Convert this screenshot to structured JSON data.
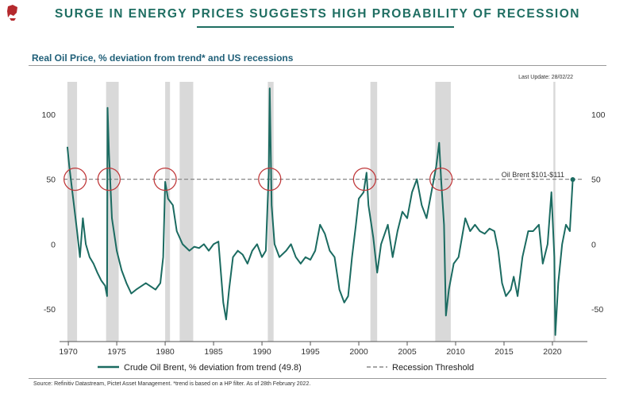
{
  "header": {
    "title": "SURGE IN ENERGY PRICES SUGGESTS HIGH PROBABILITY OF RECESSION"
  },
  "colors": {
    "accent": "#1f6e62",
    "series": "#1b6b61",
    "recession_band": "#d9d9d9",
    "circle": "#c0393b"
  },
  "footer": {
    "source": "Source: Refinitiv Datastream, Pictet Asset Management. *trend is based on a HP filter. As of 28th February 2022."
  },
  "chart_data": {
    "type": "line",
    "title": "Real Oil Price, % deviation from trend* and US recessions",
    "update_note": "Last Update: 28/02/22",
    "xlabel": "",
    "ylabel": "",
    "xlim": [
      1969.5,
      2023.2
    ],
    "ylim": [
      -75,
      125
    ],
    "x_ticks": [
      1970,
      1975,
      1980,
      1985,
      1990,
      1995,
      2000,
      2005,
      2010,
      2015,
      2020
    ],
    "y_ticks": [
      -50,
      0,
      50,
      100
    ],
    "grid": false,
    "legend_position": "bottom",
    "recessions": [
      [
        1969.9,
        1970.9
      ],
      [
        1973.9,
        1975.2
      ],
      [
        1980.0,
        1980.5
      ],
      [
        1981.5,
        1982.9
      ],
      [
        1990.6,
        1991.2
      ],
      [
        2001.2,
        2001.9
      ],
      [
        2007.9,
        2009.5
      ],
      [
        2020.1,
        2020.3
      ]
    ],
    "highlighted_points": [
      {
        "x": 1970.7,
        "y": 50
      },
      {
        "x": 1974.2,
        "y": 50
      },
      {
        "x": 1980.0,
        "y": 50
      },
      {
        "x": 1990.8,
        "y": 50
      },
      {
        "x": 2000.6,
        "y": 50
      },
      {
        "x": 2008.5,
        "y": 50
      }
    ],
    "annotation": {
      "text": "Oil Brent $101-$111",
      "x": 2022.2,
      "y": 50
    },
    "series": [
      {
        "name": "Crude Oil Brent, % deviation from trend (49.8)",
        "x": [
          1969.9,
          1970.1,
          1970.5,
          1970.9,
          1971.2,
          1971.5,
          1971.8,
          1972.2,
          1972.6,
          1973.0,
          1973.4,
          1973.8,
          1974.0,
          1974.05,
          1974.2,
          1974.5,
          1975.0,
          1975.5,
          1976.0,
          1976.5,
          1977.0,
          1978.0,
          1979.0,
          1979.5,
          1979.8,
          1980.0,
          1980.3,
          1980.8,
          1981.2,
          1981.8,
          1982.5,
          1983.0,
          1983.5,
          1984.0,
          1984.5,
          1985.0,
          1985.5,
          1986.0,
          1986.3,
          1986.6,
          1987.0,
          1987.5,
          1988.0,
          1988.5,
          1989.0,
          1989.5,
          1990.0,
          1990.4,
          1990.7,
          1990.8,
          1991.0,
          1991.3,
          1991.8,
          1992.5,
          1993.0,
          1993.5,
          1994.0,
          1994.5,
          1995.0,
          1995.5,
          1996.0,
          1996.5,
          1997.0,
          1997.5,
          1998.0,
          1998.5,
          1998.9,
          1999.3,
          1999.7,
          2000.0,
          2000.5,
          2000.8,
          2001.0,
          2001.5,
          2001.9,
          2002.3,
          2003.0,
          2003.5,
          2004.0,
          2004.5,
          2005.0,
          2005.5,
          2006.0,
          2006.5,
          2007.0,
          2007.5,
          2008.0,
          2008.3,
          2008.5,
          2008.8,
          2009.0,
          2009.3,
          2009.8,
          2010.3,
          2011.0,
          2011.5,
          2012.0,
          2012.5,
          2013.0,
          2013.5,
          2014.0,
          2014.4,
          2014.8,
          2015.2,
          2015.7,
          2016.0,
          2016.4,
          2016.9,
          2017.5,
          2018.0,
          2018.6,
          2019.0,
          2019.5,
          2019.9,
          2020.2,
          2020.3,
          2020.6,
          2021.0,
          2021.4,
          2021.8,
          2022.1
        ],
        "values": [
          75,
          60,
          35,
          10,
          -10,
          20,
          0,
          -10,
          -15,
          -22,
          -28,
          -32,
          -40,
          105,
          70,
          20,
          -5,
          -20,
          -30,
          -38,
          -35,
          -30,
          -35,
          -30,
          -10,
          48,
          35,
          30,
          10,
          0,
          -5,
          -2,
          -3,
          0,
          -5,
          0,
          2,
          -45,
          -58,
          -35,
          -10,
          -5,
          -8,
          -15,
          -5,
          0,
          -10,
          -5,
          55,
          120,
          30,
          0,
          -10,
          -5,
          0,
          -10,
          -15,
          -10,
          -12,
          -5,
          15,
          8,
          -5,
          -10,
          -35,
          -45,
          -40,
          -10,
          15,
          35,
          40,
          55,
          30,
          5,
          -22,
          0,
          15,
          -10,
          10,
          25,
          20,
          40,
          50,
          30,
          20,
          40,
          60,
          78,
          50,
          15,
          -55,
          -35,
          -15,
          -10,
          20,
          10,
          15,
          10,
          8,
          12,
          10,
          -5,
          -30,
          -40,
          -35,
          -25,
          -40,
          -10,
          10,
          10,
          15,
          -15,
          0,
          40,
          -10,
          -70,
          -30,
          0,
          15,
          10,
          49.8
        ]
      },
      {
        "name": "Recession Threshold",
        "x": [
          1969.5,
          2023.2
        ],
        "values": [
          50,
          50
        ]
      }
    ]
  }
}
